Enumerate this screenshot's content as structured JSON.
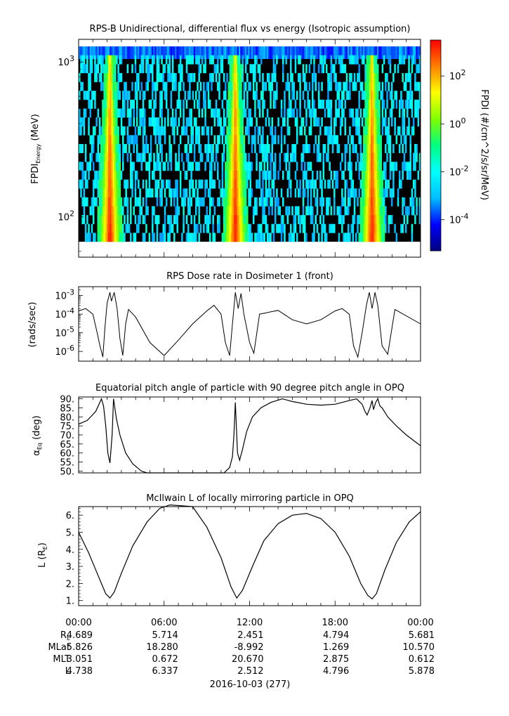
{
  "chart_data": [
    {
      "type": "heatmap",
      "title": "RPS-B  Unidirectional, differential flux vs energy (Isotropic assumption)",
      "ylabel": "FPDI",
      "ylabel_sub": "Energy",
      "ylabel_unit": "(MeV)",
      "yscale": "log",
      "ylim": [
        55,
        1400
      ],
      "yticks": [
        {
          "v": 100,
          "base": "10",
          "exp": "2"
        },
        {
          "v": 1000,
          "base": "10",
          "exp": "3"
        }
      ],
      "colorbar": {
        "label": "FPDI (#/cm^2/s/sr/MeV)",
        "scale": "log",
        "range_log10": [
          -5.3,
          3.5
        ],
        "ticks": [
          {
            "exp": "2",
            "v": 2
          },
          {
            "exp": "0",
            "v": 0
          },
          {
            "exp": "-2",
            "v": -2
          },
          {
            "exp": "-4",
            "v": -4
          }
        ],
        "colors": [
          "#000080",
          "#0000ff",
          "#00bfff",
          "#00ffff",
          "#00ff80",
          "#80ff00",
          "#ffff00",
          "#ff8000",
          "#ff0000"
        ]
      },
      "energy_channels": 22,
      "belt_crossings_hours": [
        2.2,
        11.0,
        20.6
      ],
      "crossing_notes": "bright yellow/red cores near belt crossings widening at low energy"
    },
    {
      "type": "line",
      "title": "RPS  Dose rate in Dosimeter 1 (front)",
      "ylabel": "(rads/sec)",
      "yscale": "log",
      "ylim": [
        3e-07,
        0.003
      ],
      "yticks": [
        {
          "v": 1e-06,
          "exp": "-6"
        },
        {
          "v": 1e-05,
          "exp": "-5"
        },
        {
          "v": 0.0001,
          "exp": "-4"
        },
        {
          "v": 0.001,
          "exp": "-3"
        }
      ],
      "x_hours": [
        0,
        0.5,
        1.0,
        1.3,
        1.5,
        1.7,
        1.85,
        2.0,
        2.2,
        2.3,
        2.5,
        2.7,
        2.9,
        3.1,
        3.3,
        3.5,
        4,
        5,
        6,
        7,
        8,
        9,
        9.5,
        10.0,
        10.3,
        10.6,
        10.8,
        11.0,
        11.2,
        11.4,
        11.6,
        12.0,
        12.3,
        12.7,
        14,
        15,
        16,
        17,
        18,
        18.5,
        19.0,
        19.3,
        19.6,
        19.9,
        20.2,
        20.4,
        20.6,
        20.8,
        21.0,
        21.3,
        21.7,
        22.2,
        24
      ],
      "values": [
        0.00015,
        0.0002,
        0.0001,
        1e-05,
        2e-06,
        5e-07,
        2e-05,
        0.0004,
        0.0015,
        0.0005,
        0.0015,
        0.0002,
        5e-06,
        6e-07,
        3e-05,
        0.00018,
        7e-05,
        3e-06,
        6e-07,
        4e-06,
        3e-05,
        0.00015,
        0.0003,
        0.0001,
        3e-06,
        6e-07,
        3e-05,
        0.0015,
        0.0002,
        0.0013,
        0.0001,
        3e-06,
        8e-07,
        0.0001,
        0.00016,
        5e-05,
        3e-05,
        5e-05,
        0.00015,
        0.0002,
        0.0001,
        2e-06,
        5e-07,
        1e-05,
        0.0003,
        0.0015,
        0.0002,
        0.0015,
        0.0003,
        2e-06,
        7e-07,
        0.00018,
        3e-05
      ]
    },
    {
      "type": "line",
      "title": "Equatorial pitch angle of particle with 90 degree pitch angle in OPQ",
      "ylabel": "α",
      "ylabel_sub": "Eq",
      "ylabel_unit": "(deg)",
      "ylim": [
        49,
        91
      ],
      "yticks": [
        "50.",
        "55.",
        "60.",
        "65.",
        "70.",
        "75.",
        "80.",
        "85.",
        "90."
      ],
      "x_hours": [
        0,
        0.6,
        1.2,
        1.6,
        1.75,
        1.9,
        2.05,
        2.2,
        2.35,
        2.45,
        2.65,
        2.9,
        3.3,
        3.8,
        4.4,
        4.8,
        10.2,
        10.6,
        10.8,
        10.9,
        11.0,
        11.15,
        11.3,
        11.5,
        11.8,
        12.2,
        12.8,
        13.5,
        14.3,
        15.0,
        16.0,
        17.0,
        18.0,
        19.0,
        19.5,
        19.9,
        20.1,
        20.25,
        20.45,
        20.6,
        20.7,
        20.85,
        21.0,
        21.15,
        21.3,
        21.7,
        22.3,
        23.0,
        24
      ],
      "values": [
        76,
        78,
        83,
        90,
        86,
        75,
        60,
        54.5,
        70,
        90,
        79,
        70,
        60,
        54,
        50,
        49,
        49,
        52,
        58,
        70,
        88,
        60,
        56,
        62,
        72,
        80,
        85,
        88,
        90,
        88.5,
        87,
        86.5,
        87,
        89,
        90,
        87,
        83,
        81,
        85,
        89,
        84,
        88,
        90,
        86,
        85,
        80,
        75,
        70,
        64
      ]
    },
    {
      "type": "line",
      "title": "McIlwain L of locally mirroring particle in OPQ",
      "ylabel": "L (R",
      "ylabel_sub": "E",
      "ylabel_unit": ")",
      "ylim": [
        0.7,
        6.5
      ],
      "yticks": [
        "1.",
        "2.",
        "3.",
        "4.",
        "5.",
        "6."
      ],
      "x_hours": [
        0,
        0.7,
        1.4,
        1.9,
        2.2,
        2.5,
        3.0,
        3.8,
        4.8,
        5.7,
        6.4,
        8.0,
        9.0,
        10.0,
        10.7,
        11.1,
        11.5,
        12.2,
        13.0,
        14.0,
        15.0,
        16.0,
        17.0,
        18.0,
        19.0,
        19.8,
        20.3,
        20.6,
        20.9,
        21.5,
        22.3,
        23.2,
        24
      ],
      "values": [
        5.0,
        3.8,
        2.4,
        1.4,
        1.15,
        1.5,
        2.6,
        4.2,
        5.6,
        6.4,
        6.6,
        6.5,
        5.3,
        3.5,
        1.8,
        1.15,
        1.6,
        3.0,
        4.5,
        5.5,
        6.0,
        6.1,
        5.8,
        5.0,
        3.6,
        2.0,
        1.3,
        1.1,
        1.4,
        2.8,
        4.4,
        5.6,
        6.2
      ]
    }
  ],
  "x_axis": {
    "range_hours": [
      0,
      24
    ],
    "tick_labels": [
      "00:00",
      "06:00",
      "12:00",
      "18:00",
      "00:00"
    ],
    "date_label": "2016-10-03 (277)"
  },
  "ephemeris": {
    "rows": [
      {
        "label": "R",
        "label_sub": "E",
        "values": [
          "4.689",
          "5.714",
          "2.451",
          "4.794",
          "5.681"
        ]
      },
      {
        "label": "MLat",
        "label_sub": "",
        "values": [
          "5.826",
          "18.280",
          "-8.992",
          "1.269",
          "10.570"
        ]
      },
      {
        "label": "MLT",
        "label_sub": "",
        "values": [
          "3.051",
          "0.672",
          "20.670",
          "2.875",
          "0.612"
        ]
      },
      {
        "label": "L",
        "label_sub": "",
        "values": [
          "4.738",
          "6.337",
          "2.512",
          "4.796",
          "5.878"
        ]
      }
    ]
  }
}
